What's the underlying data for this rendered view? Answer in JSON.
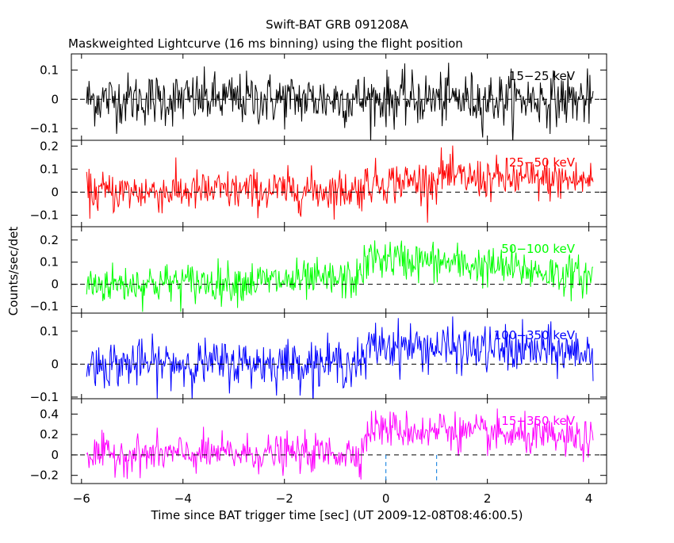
{
  "chart_data": {
    "type": "line",
    "title": "Swift-BAT GRB 091208A",
    "subtitle": "Maskweighted Lightcurve (16 ms binning) using the flight position",
    "xlabel": "Time since BAT trigger time [sec] (UT 2009-12-08T08:46:00.5)",
    "ylabel": "Counts/sec/det",
    "xlim": [
      -6.2,
      4.35
    ],
    "x_ticks": [
      -6,
      -4,
      -2,
      0,
      2,
      4
    ],
    "x_tick_labels": [
      "−6",
      "−4",
      "−2",
      "0",
      "2",
      "4"
    ],
    "bin_width_sec": 0.016,
    "x_range_data": [
      -5.9,
      4.1
    ],
    "marker_lines": [
      {
        "x": 0,
        "color": "#0077dd",
        "style": "dashed"
      },
      {
        "x": 1.0,
        "color": "#0077dd",
        "style": "dashed"
      }
    ],
    "panels": [
      {
        "name": "15-25 keV",
        "label": "15−25 keV",
        "color": "#000000",
        "ylim": [
          -0.14,
          0.155
        ],
        "y_ticks": [
          -0.1,
          0,
          0.1
        ],
        "y_tick_labels": [
          "−0.1",
          "0",
          "0.1"
        ],
        "noise_sigma": 0.045,
        "profile": [
          {
            "t": -5.9,
            "level": 0.0
          },
          {
            "t": 4.1,
            "level": 0.0
          }
        ]
      },
      {
        "name": "25-50 keV",
        "label": "25−50 keV",
        "color": "#ff0000",
        "ylim": [
          -0.15,
          0.225
        ],
        "y_ticks": [
          -0.1,
          0,
          0.1,
          0.2
        ],
        "y_tick_labels": [
          "−0.1",
          "0",
          "0.1",
          "0.2"
        ],
        "noise_sigma": 0.045,
        "profile": [
          {
            "t": -5.9,
            "level": 0.0
          },
          {
            "t": -0.5,
            "level": 0.01
          },
          {
            "t": -0.4,
            "level": 0.04
          },
          {
            "t": 1.0,
            "level": 0.05
          },
          {
            "t": 1.1,
            "level": 0.09
          },
          {
            "t": 1.3,
            "level": 0.06
          },
          {
            "t": 4.1,
            "level": 0.05
          }
        ]
      },
      {
        "name": "50-100 keV",
        "label": "50−100 keV",
        "color": "#00ff00",
        "ylim": [
          -0.13,
          0.26
        ],
        "y_ticks": [
          -0.1,
          0,
          0.1,
          0.2
        ],
        "y_tick_labels": [
          "−0.1",
          "0",
          "0.1",
          "0.2"
        ],
        "noise_sigma": 0.045,
        "profile": [
          {
            "t": -5.9,
            "level": 0.0
          },
          {
            "t": -0.6,
            "level": 0.02
          },
          {
            "t": -0.3,
            "level": 0.12
          },
          {
            "t": 1.0,
            "level": 0.1
          },
          {
            "t": 2.5,
            "level": 0.07
          },
          {
            "t": 4.1,
            "level": 0.03
          }
        ]
      },
      {
        "name": "100-350 keV",
        "label": "100−350 keV",
        "color": "#0000ff",
        "ylim": [
          -0.105,
          0.155
        ],
        "y_ticks": [
          -0.1,
          0,
          0.1
        ],
        "y_tick_labels": [
          "−0.1",
          "0",
          "0.1"
        ],
        "noise_sigma": 0.035,
        "profile": [
          {
            "t": -5.9,
            "level": 0.0
          },
          {
            "t": -0.4,
            "level": 0.005
          },
          {
            "t": -0.3,
            "level": 0.06
          },
          {
            "t": 1.0,
            "level": 0.05
          },
          {
            "t": 4.1,
            "level": 0.035
          }
        ]
      },
      {
        "name": "15-350 keV",
        "label": "15−350 keV",
        "color": "#ff00ff",
        "ylim": [
          -0.28,
          0.55
        ],
        "y_ticks": [
          -0.2,
          0,
          0.2,
          0.4
        ],
        "y_tick_labels": [
          "−0.2",
          "0",
          "0.2",
          "0.4"
        ],
        "noise_sigma": 0.09,
        "profile": [
          {
            "t": -5.9,
            "level": 0.0
          },
          {
            "t": -0.5,
            "level": 0.02
          },
          {
            "t": -0.3,
            "level": 0.27
          },
          {
            "t": 1.0,
            "level": 0.22
          },
          {
            "t": 1.1,
            "level": 0.3
          },
          {
            "t": 1.4,
            "level": 0.22
          },
          {
            "t": 4.1,
            "level": 0.14
          }
        ]
      }
    ]
  }
}
